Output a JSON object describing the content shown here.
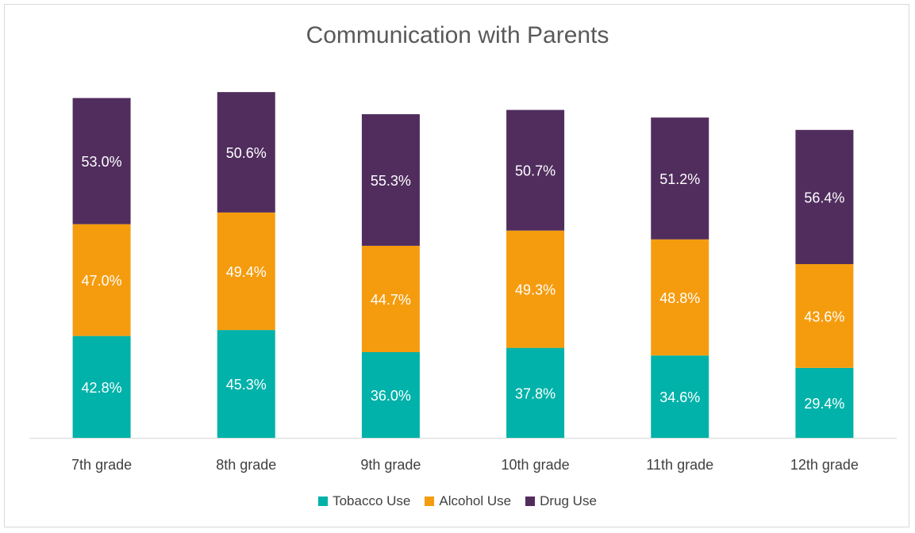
{
  "chart_data": {
    "type": "bar",
    "stacked": true,
    "title": "Communication with Parents",
    "xlabel": "",
    "ylabel": "",
    "categories": [
      "7th grade",
      "8th grade",
      "9th grade",
      "10th grade",
      "11th grade",
      "12th grade"
    ],
    "series": [
      {
        "name": "Tobacco Use",
        "color": "#00b2a9",
        "values": [
          42.8,
          45.3,
          36.0,
          37.8,
          34.6,
          29.4
        ]
      },
      {
        "name": "Alcohol Use",
        "color": "#f59c0e",
        "values": [
          47.0,
          49.4,
          44.7,
          49.3,
          48.8,
          43.6
        ]
      },
      {
        "name": "Drug Use",
        "color": "#512d5e",
        "values": [
          53.0,
          50.6,
          55.3,
          50.7,
          51.2,
          56.4
        ]
      }
    ],
    "data_labels": [
      [
        "42.8%",
        "45.3%",
        "36.0%",
        "37.8%",
        "34.6%",
        "29.4%"
      ],
      [
        "47.0%",
        "49.4%",
        "44.7%",
        "49.3%",
        "48.8%",
        "43.6%"
      ],
      [
        "53.0%",
        "50.6%",
        "55.3%",
        "50.7%",
        "51.2%",
        "56.4%"
      ]
    ],
    "ylim": [
      0,
      150
    ],
    "grid": false,
    "legend_position": "bottom"
  }
}
